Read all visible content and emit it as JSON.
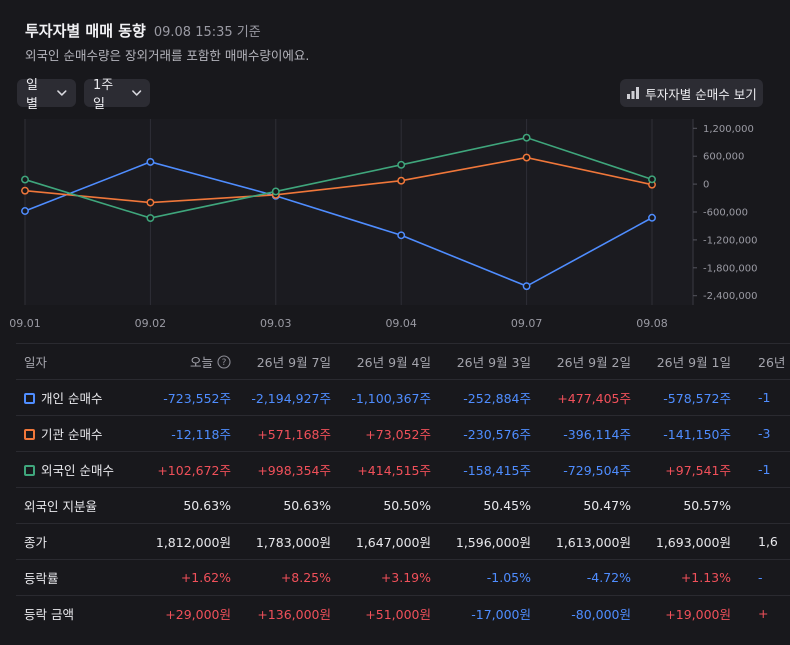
{
  "header": {
    "title": "투자자별 매매 동향",
    "timestamp": "09.08 15:35 기준",
    "subtitle": "외국인 순매수량은 장외거래를 포함한 매매수량이에요."
  },
  "controls": {
    "period_unit": "일별",
    "range": "1주일",
    "view_button": "투자자별 순매수 보기"
  },
  "chart_data": {
    "type": "line",
    "categories": [
      "09.01",
      "09.02",
      "09.03",
      "09.04",
      "09.07",
      "09.08"
    ],
    "ylim": [
      -2600000,
      1400000
    ],
    "yticks": [
      "1,200,000",
      "600,000",
      "0",
      "-600,000",
      "-1,200,000",
      "-1,800,000",
      "-2,400,000"
    ],
    "ytick_values": [
      1200000,
      600000,
      0,
      -600000,
      -1200000,
      -1800000,
      -2400000
    ],
    "series": [
      {
        "name": "개인 순매수",
        "color": "#4f8dff",
        "values": [
          -578572,
          477405,
          -252884,
          -1100367,
          -2194927,
          -723552
        ]
      },
      {
        "name": "기관 순매수",
        "color": "#f0773a",
        "values": [
          -141150,
          -396114,
          -230576,
          73052,
          571168,
          -12118
        ]
      },
      {
        "name": "외국인 순매수",
        "color": "#3fa67c",
        "values": [
          97541,
          -729504,
          -158415,
          414515,
          998354,
          102672
        ]
      }
    ]
  },
  "table": {
    "headers": [
      "일자",
      "오늘",
      "26년 9월 7일",
      "26년 9월 4일",
      "26년 9월 3일",
      "26년 9월 2일",
      "26년 9월 1일",
      "26년"
    ],
    "rows": [
      {
        "label": "개인 순매수",
        "legend_color": "#4f8dff",
        "cells": [
          {
            "v": "-723,552주",
            "c": "down"
          },
          {
            "v": "-2,194,927주",
            "c": "down"
          },
          {
            "v": "-1,100,367주",
            "c": "down"
          },
          {
            "v": "-252,884주",
            "c": "down"
          },
          {
            "v": "+477,405주",
            "c": "up"
          },
          {
            "v": "-578,572주",
            "c": "down"
          },
          {
            "v": "-1",
            "c": "down"
          }
        ]
      },
      {
        "label": "기관 순매수",
        "legend_color": "#f0773a",
        "cells": [
          {
            "v": "-12,118주",
            "c": "down"
          },
          {
            "v": "+571,168주",
            "c": "up"
          },
          {
            "v": "+73,052주",
            "c": "up"
          },
          {
            "v": "-230,576주",
            "c": "down"
          },
          {
            "v": "-396,114주",
            "c": "down"
          },
          {
            "v": "-141,150주",
            "c": "down"
          },
          {
            "v": "-3",
            "c": "down"
          }
        ]
      },
      {
        "label": "외국인 순매수",
        "legend_color": "#3fa67c",
        "cells": [
          {
            "v": "+102,672주",
            "c": "up"
          },
          {
            "v": "+998,354주",
            "c": "up"
          },
          {
            "v": "+414,515주",
            "c": "up"
          },
          {
            "v": "-158,415주",
            "c": "down"
          },
          {
            "v": "-729,504주",
            "c": "down"
          },
          {
            "v": "+97,541주",
            "c": "up"
          },
          {
            "v": "-1",
            "c": "down"
          }
        ]
      },
      {
        "label": "외국인 지분율",
        "cells": [
          {
            "v": "50.63%",
            "c": ""
          },
          {
            "v": "50.63%",
            "c": ""
          },
          {
            "v": "50.50%",
            "c": ""
          },
          {
            "v": "50.45%",
            "c": ""
          },
          {
            "v": "50.47%",
            "c": ""
          },
          {
            "v": "50.57%",
            "c": ""
          },
          {
            "v": "",
            "c": ""
          }
        ]
      },
      {
        "label": "종가",
        "cells": [
          {
            "v": "1,812,000원",
            "c": ""
          },
          {
            "v": "1,783,000원",
            "c": ""
          },
          {
            "v": "1,647,000원",
            "c": ""
          },
          {
            "v": "1,596,000원",
            "c": ""
          },
          {
            "v": "1,613,000원",
            "c": ""
          },
          {
            "v": "1,693,000원",
            "c": ""
          },
          {
            "v": "1,6",
            "c": ""
          }
        ]
      },
      {
        "label": "등락률",
        "cells": [
          {
            "v": "+1.62%",
            "c": "up"
          },
          {
            "v": "+8.25%",
            "c": "up"
          },
          {
            "v": "+3.19%",
            "c": "up"
          },
          {
            "v": "-1.05%",
            "c": "down"
          },
          {
            "v": "-4.72%",
            "c": "down"
          },
          {
            "v": "+1.13%",
            "c": "up"
          },
          {
            "v": "-",
            "c": "down"
          }
        ]
      },
      {
        "label": "등락 금액",
        "cells": [
          {
            "v": "+29,000원",
            "c": "up"
          },
          {
            "v": "+136,000원",
            "c": "up"
          },
          {
            "v": "+51,000원",
            "c": "up"
          },
          {
            "v": "-17,000원",
            "c": "down"
          },
          {
            "v": "-80,000원",
            "c": "down"
          },
          {
            "v": "+19,000원",
            "c": "up"
          },
          {
            "v": "+",
            "c": "up"
          }
        ]
      }
    ]
  }
}
